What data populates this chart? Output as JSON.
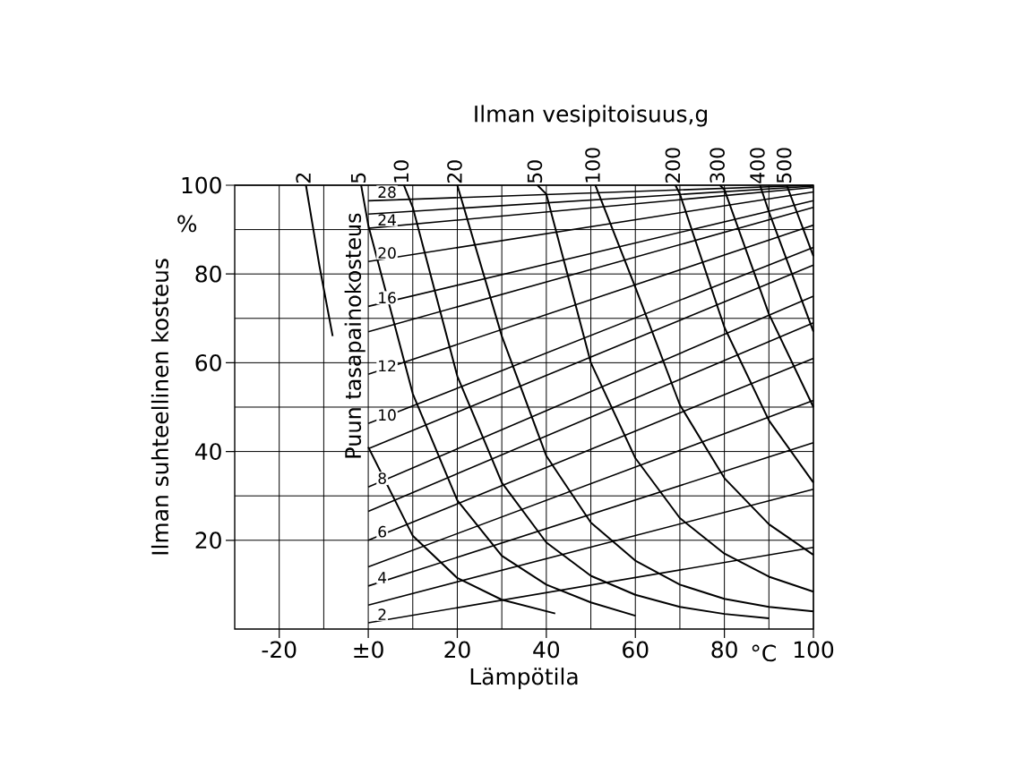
{
  "chart_data": {
    "type": "line",
    "title": "Ilman vesipitoisuus,g",
    "xlabel": "Lämpötila",
    "ylabel": "Ilman suhteellinen kosteus",
    "annotations": [
      "%",
      "°C",
      "Puun tasapainokosteus"
    ],
    "xlim": [
      -30,
      100
    ],
    "ylim": [
      0,
      100
    ],
    "xticks": [
      -20,
      {
        "value": 0,
        "label": "±0"
      },
      20,
      40,
      60,
      80,
      100
    ],
    "yticks": [
      20,
      40,
      60,
      80,
      100
    ],
    "grid": true,
    "series": [
      {
        "name": "2",
        "color": "#000000",
        "x": [
          -14,
          -11,
          -8,
          -4,
          0,
          10,
          20,
          30,
          42
        ],
        "values": [
          100,
          82,
          66,
          null,
          41,
          21,
          11.5,
          6.6,
          3.5
        ]
      },
      {
        "name": "5",
        "color": "#000000",
        "x": [
          -1.6,
          0,
          10,
          20,
          30,
          40,
          50,
          60
        ],
        "values": [
          100,
          91,
          53,
          29,
          16.5,
          10,
          6,
          3
        ]
      },
      {
        "name": "10",
        "color": "#000000",
        "x": [
          8,
          10,
          20,
          30,
          40,
          50,
          60,
          70,
          80,
          90
        ],
        "values": [
          100,
          95,
          57,
          33,
          19.5,
          12,
          7.7,
          5,
          3.4,
          2.4
        ]
      },
      {
        "name": "20",
        "color": "#000000",
        "x": [
          20,
          30,
          40,
          50,
          60,
          70,
          80,
          90,
          100
        ],
        "values": [
          100,
          66,
          39,
          24,
          15.4,
          10,
          6.8,
          5,
          4
        ]
      },
      {
        "name": "50",
        "color": "#000000",
        "x": [
          38,
          40,
          50,
          60,
          70,
          80,
          90,
          100
        ],
        "values": [
          100,
          98,
          60,
          38.5,
          25,
          17,
          11.8,
          8.4
        ]
      },
      {
        "name": "100",
        "color": "#000000",
        "x": [
          51,
          60,
          70,
          80,
          90,
          100
        ],
        "values": [
          100,
          77,
          50.5,
          34,
          23.6,
          16.7
        ]
      },
      {
        "name": "200",
        "color": "#000000",
        "x": [
          69,
          70,
          80,
          90,
          100
        ],
        "values": [
          100,
          98,
          68,
          47,
          33
        ]
      },
      {
        "name": "300",
        "color": "#000000",
        "x": [
          79,
          80,
          90,
          100
        ],
        "values": [
          100,
          99,
          71,
          50
        ]
      },
      {
        "name": "400",
        "color": "#000000",
        "x": [
          88,
          90,
          100
        ],
        "values": [
          100,
          94,
          67
        ]
      },
      {
        "name": "500",
        "color": "#000000",
        "x": [
          94,
          100
        ],
        "values": [
          100,
          84
        ]
      },
      {
        "name": "2",
        "color": "#000000",
        "x": [
          0,
          100
        ],
        "values": [
          1.4,
          18.4
        ]
      },
      {
        "color": "#000000",
        "x": [
          0,
          100
        ],
        "values": [
          5.4,
          31.5
        ]
      },
      {
        "name": "4",
        "color": "#000000",
        "x": [
          0,
          100
        ],
        "values": [
          9.7,
          42
        ]
      },
      {
        "color": "#000000",
        "x": [
          0,
          100
        ],
        "values": [
          14,
          51.5
        ]
      },
      {
        "name": "6",
        "color": "#000000",
        "x": [
          0,
          100
        ],
        "values": [
          20,
          61
        ]
      },
      {
        "color": "#000000",
        "x": [
          0,
          100
        ],
        "values": [
          26.5,
          69
        ]
      },
      {
        "name": "8",
        "color": "#000000",
        "x": [
          0,
          100
        ],
        "values": [
          32,
          75
        ]
      },
      {
        "color": "#000000",
        "x": [
          0,
          100
        ],
        "values": [
          40.6,
          82
        ]
      },
      {
        "name": "10",
        "color": "#000000",
        "x": [
          0,
          100
        ],
        "values": [
          46.3,
          86
        ]
      },
      {
        "name": "12",
        "color": "#000000",
        "x": [
          0,
          100
        ],
        "values": [
          57.4,
          91
        ]
      },
      {
        "color": "#000000",
        "x": [
          0,
          100
        ],
        "values": [
          67,
          95
        ]
      },
      {
        "name": "16",
        "color": "#000000",
        "x": [
          0,
          100
        ],
        "values": [
          72.7,
          96.5
        ]
      },
      {
        "name": "20",
        "color": "#000000",
        "x": [
          0,
          100
        ],
        "values": [
          82.8,
          98.5
        ]
      },
      {
        "name": "24",
        "color": "#000000",
        "x": [
          0,
          100
        ],
        "values": [
          90.3,
          99.5
        ]
      },
      {
        "color": "#000000",
        "x": [
          0,
          100
        ],
        "values": [
          93.5,
          99.8
        ]
      },
      {
        "name": "28",
        "color": "#000000",
        "x": [
          0,
          100
        ],
        "values": [
          96.5,
          100
        ]
      }
    ]
  }
}
